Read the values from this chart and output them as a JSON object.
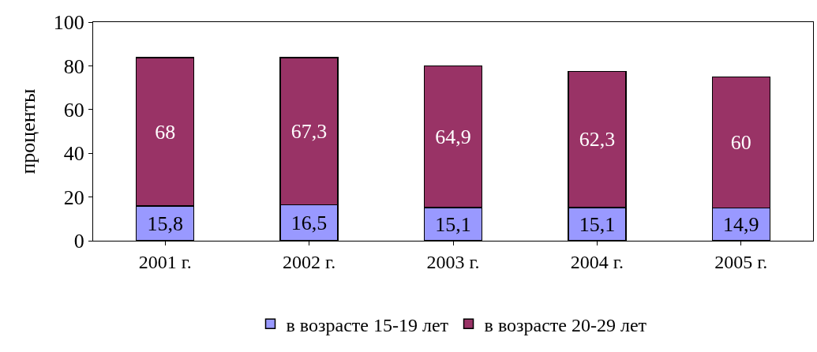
{
  "chart_data": {
    "type": "bar",
    "stacked": true,
    "ylabel": "проценты",
    "categories": [
      "2001 г.",
      "2002 г.",
      "2003 г.",
      "2004 г.",
      "2005 г."
    ],
    "series": [
      {
        "name": "в возрасте 15-19 лет",
        "color": "#9999ff",
        "values": [
          15.8,
          16.5,
          15.1,
          15.1,
          14.9
        ],
        "value_labels": [
          "15,8",
          "16,5",
          "15,1",
          "15,1",
          "14,9"
        ]
      },
      {
        "name": "в возрасте 20-29 лет",
        "color": "#993366",
        "values": [
          68,
          67.3,
          64.9,
          62.3,
          60
        ],
        "value_labels": [
          "68",
          "67,3",
          "64,9",
          "62,3",
          "60"
        ]
      }
    ],
    "ylim": [
      0,
      100
    ],
    "yticks": [
      0,
      20,
      40,
      60,
      80,
      100
    ],
    "grid": false,
    "legend": "bottom"
  }
}
